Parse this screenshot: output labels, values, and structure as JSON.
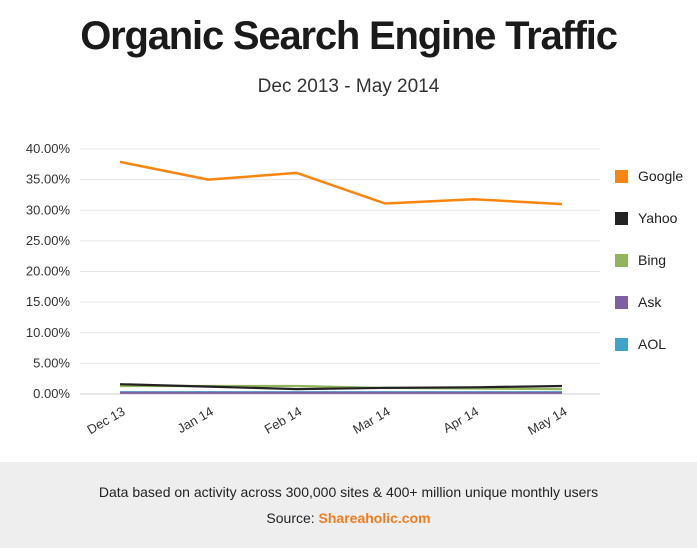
{
  "header": {
    "title": "Organic Search Engine Traffic",
    "subtitle": "Dec 2013 - May 2014"
  },
  "footer": {
    "note": "Data based on activity across 300,000 sites & 400+ million unique monthly users",
    "source_prefix": "Source:",
    "source_brand": "Shareaholic.com",
    "brand_color": "#f37b1d"
  },
  "chart_data": {
    "type": "line",
    "title": "Organic Search Engine Traffic",
    "subtitle": "Dec 2013 - May 2014",
    "x": [
      "Dec 13",
      "Jan 14",
      "Feb 14",
      "Mar 14",
      "Apr 14",
      "May 14"
    ],
    "ylim": [
      0,
      40
    ],
    "yticks": [
      0,
      5,
      10,
      15,
      20,
      25,
      30,
      35,
      40
    ],
    "ytick_labels": [
      "0.00%",
      "5.00%",
      "10.00%",
      "15.00%",
      "20.00%",
      "25.00%",
      "30.00%",
      "35.00%",
      "40.00%"
    ],
    "grid": true,
    "legend": "right",
    "series": [
      {
        "name": "Google",
        "color": "#f7850f",
        "values": [
          37.9,
          35.0,
          36.1,
          31.1,
          31.8,
          31.0
        ]
      },
      {
        "name": "Yahoo",
        "color": "#222222",
        "values": [
          1.6,
          1.2,
          0.8,
          1.0,
          1.1,
          1.3
        ]
      },
      {
        "name": "Bing",
        "color": "#92b45a",
        "values": [
          1.3,
          1.3,
          1.3,
          1.0,
          0.9,
          0.8
        ]
      },
      {
        "name": "Ask",
        "color": "#7e5fa3",
        "values": [
          0.2,
          0.2,
          0.2,
          0.2,
          0.2,
          0.2
        ]
      },
      {
        "name": "AOL",
        "color": "#3fa3c9",
        "values": [
          0.3,
          0.3,
          0.3,
          0.3,
          0.3,
          0.3
        ]
      }
    ]
  }
}
